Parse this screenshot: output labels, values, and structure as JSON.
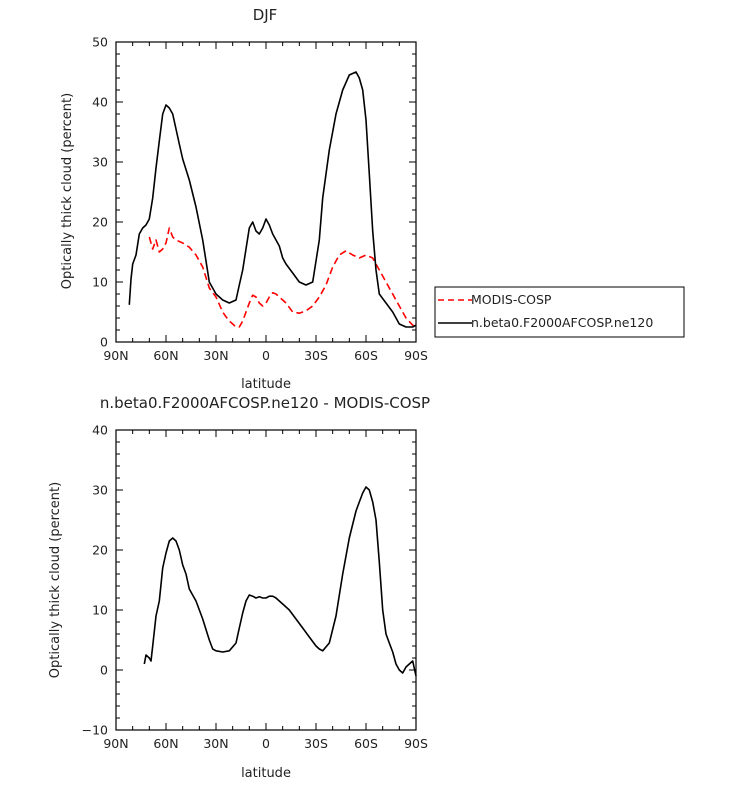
{
  "chart_data": [
    {
      "type": "line",
      "title": "DJF",
      "xlabel": "latitude",
      "ylabel": "Optically thick cloud (percent)",
      "xlim": [
        -90,
        90
      ],
      "ylim": [
        0,
        50
      ],
      "x_ticks": [
        {
          "value": -90,
          "label": "90N"
        },
        {
          "value": -60,
          "label": "60N"
        },
        {
          "value": -30,
          "label": "30N"
        },
        {
          "value": 0,
          "label": "0"
        },
        {
          "value": 30,
          "label": "30S"
        },
        {
          "value": 60,
          "label": "60S"
        },
        {
          "value": 90,
          "label": "90S"
        }
      ],
      "y_ticks": [
        0,
        10,
        20,
        30,
        40,
        50
      ],
      "legend": {
        "position": "right"
      },
      "series": [
        {
          "name": "MODIS-COSP",
          "color": "#ff0000",
          "dash": "dashed",
          "x": [
            -70,
            -68,
            -66,
            -64,
            -62,
            -60,
            -58,
            -56,
            -54,
            -50,
            -46,
            -42,
            -38,
            -34,
            -30,
            -26,
            -24,
            -22,
            -20,
            -18,
            -16,
            -14,
            -12,
            -10,
            -8,
            -6,
            -4,
            -2,
            0,
            2,
            4,
            6,
            8,
            10,
            12,
            16,
            20,
            24,
            28,
            32,
            36,
            40,
            44,
            48,
            52,
            56,
            60,
            64,
            68,
            72,
            76,
            80,
            84,
            88,
            90
          ],
          "y": [
            17.5,
            15.5,
            17.0,
            15.0,
            15.5,
            16.5,
            19.0,
            17.5,
            17.0,
            16.5,
            15.8,
            14.5,
            12.5,
            9.0,
            7.5,
            5.0,
            4.2,
            3.5,
            3.0,
            2.5,
            2.5,
            3.5,
            5.0,
            6.5,
            7.8,
            7.5,
            6.5,
            6.0,
            6.5,
            7.5,
            8.2,
            8.0,
            7.5,
            7.0,
            6.5,
            5.0,
            4.8,
            5.2,
            6.0,
            7.5,
            9.5,
            12.5,
            14.5,
            15.2,
            14.5,
            14.0,
            14.5,
            14.0,
            12.0,
            10.0,
            8.0,
            6.0,
            4.0,
            2.8,
            2.6
          ]
        },
        {
          "name": "n.beta0.F2000AFCOSP.ne120",
          "color": "#000000",
          "dash": "solid",
          "x": [
            -82,
            -81,
            -80,
            -78,
            -76,
            -74,
            -72,
            -70,
            -68,
            -66,
            -64,
            -62,
            -60,
            -58,
            -56,
            -54,
            -52,
            -50,
            -46,
            -42,
            -38,
            -34,
            -30,
            -26,
            -22,
            -18,
            -16,
            -14,
            -12,
            -10,
            -8,
            -6,
            -4,
            -2,
            0,
            2,
            4,
            6,
            8,
            10,
            12,
            16,
            20,
            24,
            28,
            32,
            34,
            38,
            42,
            46,
            50,
            54,
            56,
            58,
            60,
            62,
            64,
            66,
            68,
            72,
            76,
            80,
            84,
            88,
            90
          ],
          "y": [
            6.2,
            10.5,
            13.0,
            14.5,
            18.0,
            19.0,
            19.5,
            20.5,
            24.0,
            29.0,
            33.5,
            38.0,
            39.5,
            39.0,
            38.0,
            35.5,
            33.0,
            30.5,
            27.0,
            22.5,
            17.0,
            10.0,
            8.0,
            7.0,
            6.5,
            7.0,
            9.5,
            12.0,
            15.5,
            19.0,
            20.0,
            18.5,
            18.0,
            19.0,
            20.5,
            19.5,
            18.0,
            17.0,
            16.0,
            14.0,
            13.0,
            11.5,
            10.0,
            9.5,
            10.0,
            17.0,
            24.0,
            32.0,
            38.0,
            42.0,
            44.5,
            45.0,
            44.0,
            42.0,
            37.0,
            28.0,
            18.5,
            12.0,
            8.0,
            6.5,
            5.0,
            3.0,
            2.5,
            2.5,
            2.8
          ]
        }
      ]
    },
    {
      "type": "line",
      "title": "n.beta0.F2000AFCOSP.ne120 - MODIS-COSP",
      "xlabel": "latitude",
      "ylabel": "Optically thick cloud (percent)",
      "xlim": [
        -90,
        90
      ],
      "ylim": [
        -10,
        40
      ],
      "x_ticks": [
        {
          "value": -90,
          "label": "90N"
        },
        {
          "value": -60,
          "label": "60N"
        },
        {
          "value": -30,
          "label": "30N"
        },
        {
          "value": 0,
          "label": "0"
        },
        {
          "value": 30,
          "label": "30S"
        },
        {
          "value": 60,
          "label": "60S"
        },
        {
          "value": 90,
          "label": "90S"
        }
      ],
      "y_ticks": [
        -10,
        0,
        10,
        20,
        30,
        40
      ],
      "series": [
        {
          "color": "#000000",
          "dash": "solid",
          "x": [
            -73,
            -72,
            -70,
            -69,
            -68,
            -66,
            -64,
            -62,
            -60,
            -58,
            -56,
            -54,
            -52,
            -50,
            -48,
            -46,
            -42,
            -38,
            -34,
            -32,
            -30,
            -26,
            -22,
            -18,
            -16,
            -14,
            -12,
            -10,
            -8,
            -6,
            -4,
            -2,
            0,
            2,
            4,
            6,
            8,
            10,
            14,
            18,
            22,
            26,
            30,
            32,
            34,
            38,
            42,
            46,
            50,
            54,
            56,
            58,
            60,
            62,
            64,
            66,
            68,
            70,
            72,
            74,
            76,
            78,
            80,
            82,
            84,
            86,
            88,
            90
          ],
          "y": [
            1.0,
            2.5,
            2.0,
            1.5,
            4.0,
            9.0,
            11.5,
            17.0,
            19.5,
            21.5,
            22.0,
            21.5,
            20.0,
            17.5,
            16.0,
            13.5,
            11.5,
            8.5,
            5.0,
            3.5,
            3.2,
            3.0,
            3.2,
            4.5,
            7.0,
            9.5,
            11.5,
            12.5,
            12.3,
            12.0,
            12.2,
            12.0,
            12.0,
            12.3,
            12.3,
            12.0,
            11.5,
            11.0,
            10.0,
            8.5,
            7.0,
            5.5,
            4.0,
            3.5,
            3.2,
            4.5,
            9.0,
            16.0,
            22.0,
            26.5,
            28.0,
            29.5,
            30.5,
            30.0,
            28.0,
            25.0,
            18.0,
            10.0,
            6.0,
            4.5,
            3.0,
            1.0,
            0.0,
            -0.5,
            0.5,
            1.0,
            1.5,
            -1.0
          ]
        }
      ]
    }
  ]
}
